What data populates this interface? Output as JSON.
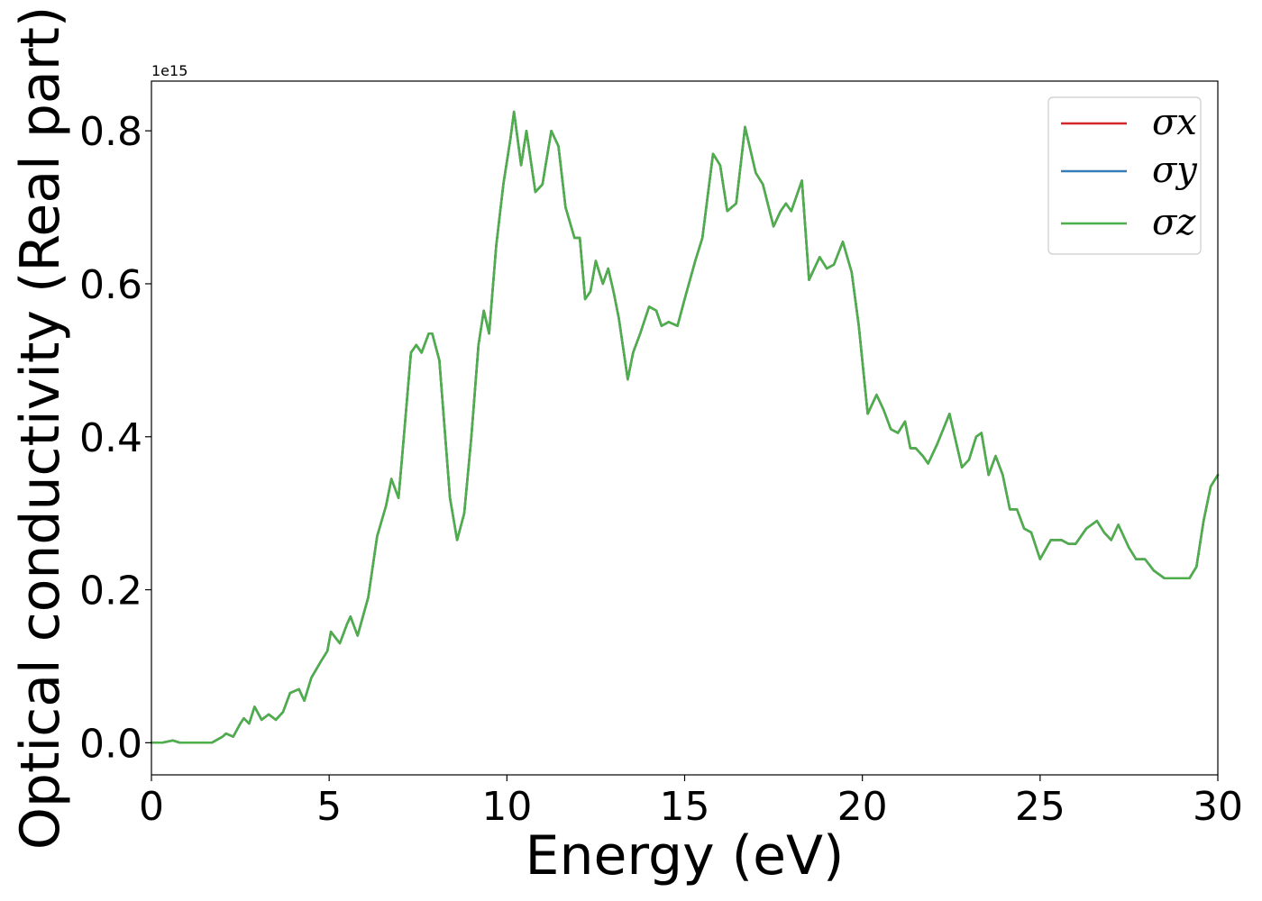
{
  "chart_data": {
    "type": "line",
    "xlabel": "Energy (eV)",
    "ylabel": "Optical conductivity (Real part)",
    "y_offset_label": "1e15",
    "xlim": [
      0,
      30
    ],
    "ylim": [
      -0.042,
      0.865
    ],
    "xticks": [
      0,
      5,
      10,
      15,
      20,
      25,
      30
    ],
    "xtick_labels": [
      "0",
      "5",
      "10",
      "15",
      "20",
      "25",
      "30"
    ],
    "yticks": [
      0.0,
      0.2,
      0.4,
      0.6,
      0.8
    ],
    "ytick_labels": [
      "0.0",
      "0.2",
      "0.4",
      "0.6",
      "0.8"
    ],
    "grid": false,
    "legend_position": "top-right",
    "x": [
      0,
      0.3,
      0.6,
      0.8,
      1.2,
      1.7,
      2.0,
      2.1,
      2.3,
      2.5,
      2.6,
      2.75,
      2.9,
      3.1,
      3.3,
      3.5,
      3.7,
      3.9,
      4.15,
      4.3,
      4.5,
      4.75,
      4.95,
      5.05,
      5.3,
      5.5,
      5.6,
      5.8,
      6.1,
      6.35,
      6.6,
      6.75,
      6.95,
      7.1,
      7.3,
      7.45,
      7.6,
      7.8,
      7.9,
      8.1,
      8.4,
      8.6,
      8.8,
      9.0,
      9.2,
      9.35,
      9.5,
      9.7,
      9.9,
      10.1,
      10.2,
      10.4,
      10.55,
      10.8,
      11.0,
      11.25,
      11.45,
      11.65,
      11.9,
      12.05,
      12.2,
      12.35,
      12.5,
      12.7,
      12.85,
      13.0,
      13.15,
      13.4,
      13.55,
      13.75,
      14.0,
      14.2,
      14.35,
      14.55,
      14.8,
      15.0,
      15.3,
      15.5,
      15.8,
      16.0,
      16.2,
      16.45,
      16.7,
      17.0,
      17.2,
      17.5,
      17.7,
      17.85,
      18.0,
      18.3,
      18.5,
      18.8,
      19.0,
      19.2,
      19.45,
      19.7,
      19.9,
      20.15,
      20.4,
      20.6,
      20.8,
      21.0,
      21.2,
      21.35,
      21.5,
      21.7,
      21.85,
      22.1,
      22.45,
      22.8,
      23.0,
      23.2,
      23.35,
      23.55,
      23.75,
      23.95,
      24.15,
      24.35,
      24.55,
      24.75,
      25.0,
      25.3,
      25.6,
      25.8,
      26.0,
      26.3,
      26.6,
      26.8,
      27.0,
      27.2,
      27.5,
      27.7,
      27.95,
      28.2,
      28.5,
      28.8,
      29.0,
      29.2,
      29.4,
      29.6,
      29.8,
      30.0
    ],
    "series": [
      {
        "name": "σx",
        "color": "#d62728",
        "values": [
          0,
          0.0,
          0.003,
          0.0,
          0.0,
          0.0,
          0.008,
          0.012,
          0.008,
          0.025,
          0.032,
          0.025,
          0.047,
          0.03,
          0.037,
          0.03,
          0.04,
          0.065,
          0.07,
          0.055,
          0.085,
          0.105,
          0.12,
          0.145,
          0.13,
          0.155,
          0.165,
          0.14,
          0.19,
          0.27,
          0.31,
          0.345,
          0.32,
          0.4,
          0.51,
          0.52,
          0.51,
          0.535,
          0.535,
          0.5,
          0.32,
          0.265,
          0.3,
          0.4,
          0.52,
          0.565,
          0.535,
          0.65,
          0.73,
          0.79,
          0.825,
          0.755,
          0.8,
          0.72,
          0.73,
          0.8,
          0.78,
          0.7,
          0.66,
          0.66,
          0.58,
          0.59,
          0.63,
          0.6,
          0.62,
          0.59,
          0.555,
          0.475,
          0.51,
          0.535,
          0.57,
          0.565,
          0.545,
          0.55,
          0.545,
          0.58,
          0.63,
          0.66,
          0.77,
          0.755,
          0.695,
          0.705,
          0.805,
          0.745,
          0.73,
          0.675,
          0.695,
          0.705,
          0.695,
          0.735,
          0.605,
          0.635,
          0.62,
          0.625,
          0.655,
          0.615,
          0.545,
          0.43,
          0.455,
          0.435,
          0.41,
          0.405,
          0.42,
          0.385,
          0.385,
          0.375,
          0.365,
          0.39,
          0.43,
          0.36,
          0.37,
          0.4,
          0.405,
          0.35,
          0.375,
          0.35,
          0.305,
          0.305,
          0.28,
          0.275,
          0.24,
          0.265,
          0.265,
          0.26,
          0.26,
          0.28,
          0.29,
          0.275,
          0.265,
          0.285,
          0.255,
          0.24,
          0.24,
          0.225,
          0.215,
          0.215,
          0.215,
          0.215,
          0.23,
          0.29,
          0.335,
          0.35
        ]
      },
      {
        "name": "σy",
        "color": "#377eb8",
        "values": [
          0,
          0.0,
          0.003,
          0.0,
          0.0,
          0.0,
          0.008,
          0.012,
          0.008,
          0.025,
          0.032,
          0.025,
          0.047,
          0.03,
          0.037,
          0.03,
          0.04,
          0.065,
          0.07,
          0.055,
          0.085,
          0.105,
          0.12,
          0.145,
          0.13,
          0.155,
          0.165,
          0.14,
          0.19,
          0.27,
          0.31,
          0.345,
          0.32,
          0.4,
          0.51,
          0.52,
          0.51,
          0.535,
          0.535,
          0.5,
          0.32,
          0.265,
          0.3,
          0.4,
          0.52,
          0.565,
          0.535,
          0.65,
          0.73,
          0.79,
          0.825,
          0.755,
          0.8,
          0.72,
          0.73,
          0.8,
          0.78,
          0.7,
          0.66,
          0.66,
          0.58,
          0.59,
          0.63,
          0.6,
          0.62,
          0.59,
          0.555,
          0.475,
          0.51,
          0.535,
          0.57,
          0.565,
          0.545,
          0.55,
          0.545,
          0.58,
          0.63,
          0.66,
          0.77,
          0.755,
          0.695,
          0.705,
          0.805,
          0.745,
          0.73,
          0.675,
          0.695,
          0.705,
          0.695,
          0.735,
          0.605,
          0.635,
          0.62,
          0.625,
          0.655,
          0.615,
          0.545,
          0.43,
          0.455,
          0.435,
          0.41,
          0.405,
          0.42,
          0.385,
          0.385,
          0.375,
          0.365,
          0.39,
          0.43,
          0.36,
          0.37,
          0.4,
          0.405,
          0.35,
          0.375,
          0.35,
          0.305,
          0.305,
          0.28,
          0.275,
          0.24,
          0.265,
          0.265,
          0.26,
          0.26,
          0.28,
          0.29,
          0.275,
          0.265,
          0.285,
          0.255,
          0.24,
          0.24,
          0.225,
          0.215,
          0.215,
          0.215,
          0.215,
          0.23,
          0.29,
          0.335,
          0.35
        ]
      },
      {
        "name": "σz",
        "color": "#4daf4a",
        "values": [
          0,
          0.0,
          0.003,
          0.0,
          0.0,
          0.0,
          0.008,
          0.012,
          0.008,
          0.025,
          0.032,
          0.025,
          0.047,
          0.03,
          0.037,
          0.03,
          0.04,
          0.065,
          0.07,
          0.055,
          0.085,
          0.105,
          0.12,
          0.145,
          0.13,
          0.155,
          0.165,
          0.14,
          0.19,
          0.27,
          0.31,
          0.345,
          0.32,
          0.4,
          0.51,
          0.52,
          0.51,
          0.535,
          0.535,
          0.5,
          0.32,
          0.265,
          0.3,
          0.4,
          0.52,
          0.565,
          0.535,
          0.65,
          0.73,
          0.79,
          0.825,
          0.755,
          0.8,
          0.72,
          0.73,
          0.8,
          0.78,
          0.7,
          0.66,
          0.66,
          0.58,
          0.59,
          0.63,
          0.6,
          0.62,
          0.59,
          0.555,
          0.475,
          0.51,
          0.535,
          0.57,
          0.565,
          0.545,
          0.55,
          0.545,
          0.58,
          0.63,
          0.66,
          0.77,
          0.755,
          0.695,
          0.705,
          0.805,
          0.745,
          0.73,
          0.675,
          0.695,
          0.705,
          0.695,
          0.735,
          0.605,
          0.635,
          0.62,
          0.625,
          0.655,
          0.615,
          0.545,
          0.43,
          0.455,
          0.435,
          0.41,
          0.405,
          0.42,
          0.385,
          0.385,
          0.375,
          0.365,
          0.39,
          0.43,
          0.36,
          0.37,
          0.4,
          0.405,
          0.35,
          0.375,
          0.35,
          0.305,
          0.305,
          0.28,
          0.275,
          0.24,
          0.265,
          0.265,
          0.26,
          0.26,
          0.28,
          0.29,
          0.275,
          0.265,
          0.285,
          0.255,
          0.24,
          0.24,
          0.225,
          0.215,
          0.215,
          0.215,
          0.215,
          0.23,
          0.29,
          0.335,
          0.35
        ]
      }
    ]
  }
}
